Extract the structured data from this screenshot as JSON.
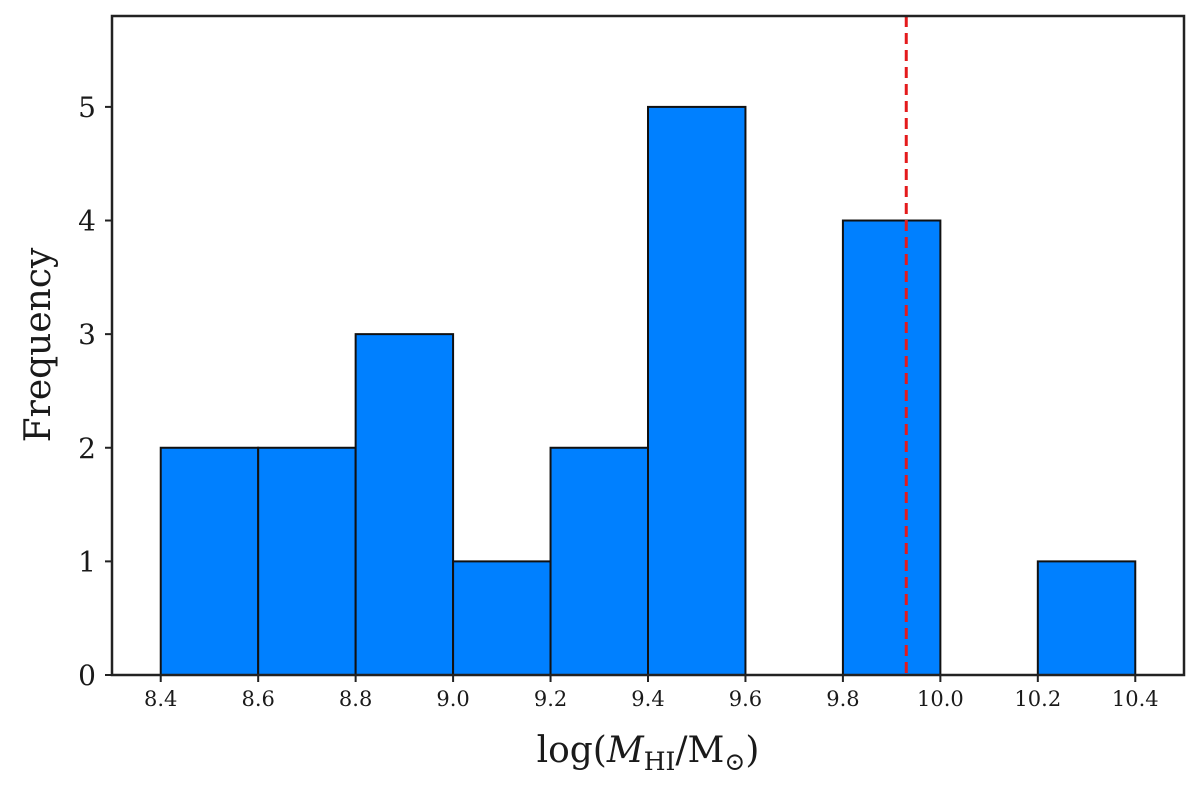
{
  "chart_data": {
    "type": "bar",
    "subtype": "histogram",
    "bins": [
      {
        "left": 8.4,
        "right": 8.6,
        "count": 2
      },
      {
        "left": 8.6,
        "right": 8.8,
        "count": 2
      },
      {
        "left": 8.8,
        "right": 9.0,
        "count": 3
      },
      {
        "left": 9.0,
        "right": 9.2,
        "count": 1
      },
      {
        "left": 9.2,
        "right": 9.4,
        "count": 2
      },
      {
        "left": 9.4,
        "right": 9.6,
        "count": 5
      },
      {
        "left": 9.8,
        "right": 10.0,
        "count": 4
      },
      {
        "left": 10.2,
        "right": 10.4,
        "count": 1
      }
    ],
    "xlim": [
      8.3,
      10.5
    ],
    "ylim": [
      0,
      5.8
    ],
    "xticks": [
      "8.4",
      "8.6",
      "8.8",
      "9.0",
      "9.2",
      "9.4",
      "9.6",
      "9.8",
      "10.0",
      "10.2",
      "10.4"
    ],
    "yticks": [
      "0",
      "1",
      "2",
      "3",
      "4",
      "5"
    ],
    "xlabel": {
      "prefix": "log(",
      "var": "M",
      "sub": "HI",
      "slash": "/M",
      "sub2": "⊙",
      "suffix": ")"
    },
    "ylabel": "Frequency",
    "vline": {
      "x": 9.93,
      "style": "dashed"
    },
    "bar_color": "#0080FF",
    "vline_color": "#E41A1C",
    "grid": false
  }
}
